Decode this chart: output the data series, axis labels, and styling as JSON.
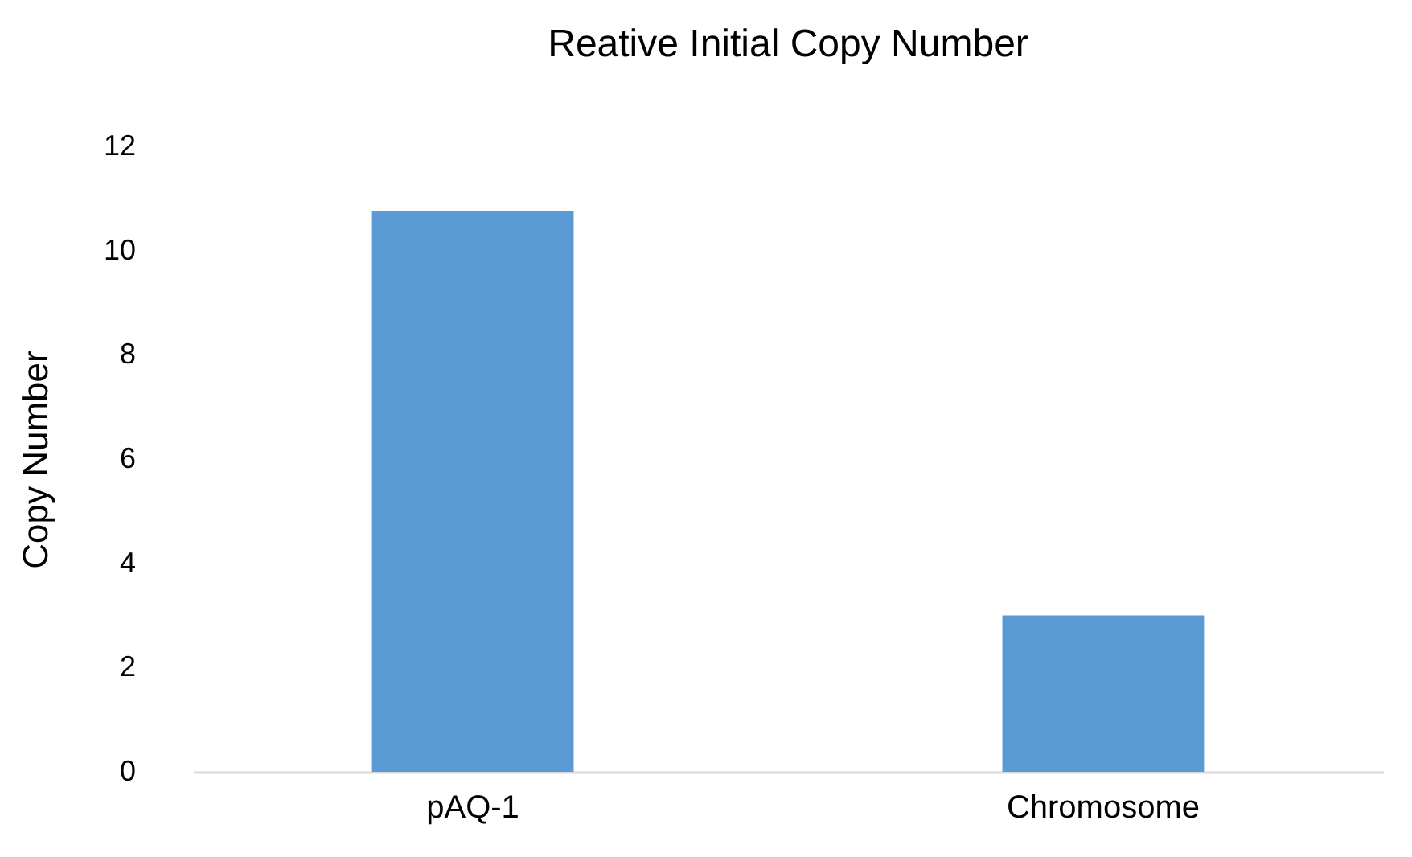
{
  "chart_data": {
    "type": "bar",
    "title": "Reative Initial Copy Number",
    "ylabel": "Copy Number",
    "categories": [
      "pAQ-1",
      "Chromosome"
    ],
    "values": [
      10.75,
      3.0
    ],
    "color": "#5b9bd5",
    "ylim": [
      0,
      12
    ],
    "yticks": [
      0,
      2,
      4,
      6,
      8,
      10,
      12
    ],
    "grid": false
  }
}
